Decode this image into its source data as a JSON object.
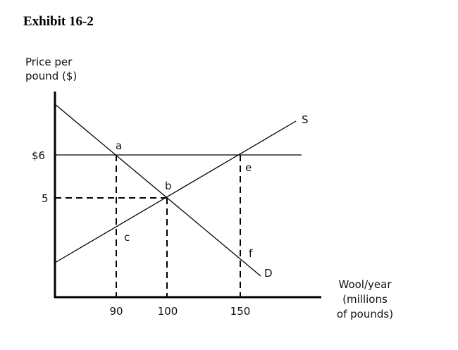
{
  "title": "Exhibit 16-2",
  "y_axis_label": [
    "Price per",
    "pound ($)"
  ],
  "x_axis_label": [
    "Wool/year",
    "(millions",
    "of pounds)"
  ],
  "y_ticks": [
    "$6",
    "5"
  ],
  "x_ticks": [
    "90",
    "100",
    "150"
  ],
  "curve_labels": {
    "supply": "S",
    "demand": "D"
  },
  "point_labels": {
    "a": "a",
    "b": "b",
    "c": "c",
    "e": "e",
    "f": "f"
  }
}
